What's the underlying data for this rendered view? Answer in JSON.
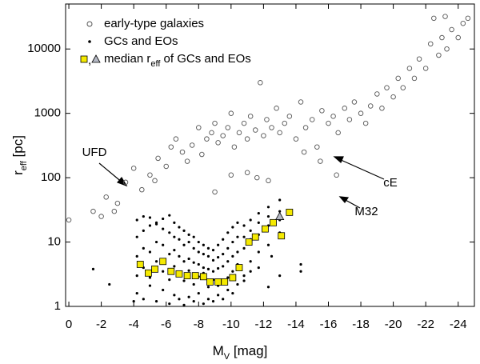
{
  "chart_data": {
    "type": "scatter",
    "xlim": [
      0.2,
      -25
    ],
    "ylim": [
      1,
      50000
    ],
    "log_y": true,
    "xticks": [
      0,
      -2,
      -4,
      -6,
      -8,
      -10,
      -12,
      -14,
      -16,
      -18,
      -20,
      -22,
      -24
    ],
    "yticks": [
      1,
      10,
      100,
      1000,
      10000
    ],
    "xlabel": {
      "main": "M",
      "sub": "V",
      "rest": " [mag]"
    },
    "ylabel": {
      "main": "r",
      "sub": "eff",
      "rest": " [pc]"
    },
    "legend_median": {
      "sep": ",",
      "main": "median r",
      "sub": "eff",
      "rest": " of GCs and EOs"
    },
    "annotations": [
      {
        "text": "UFD"
      },
      {
        "text": "cE"
      },
      {
        "text": "M32"
      }
    ],
    "series": [
      {
        "name": "early-type galaxies",
        "color": "#555555",
        "marker": "open-circle",
        "x": [
          0,
          -1.5,
          -2,
          -2.3,
          -2.8,
          -3,
          -3.5,
          -4,
          -4.5,
          -5,
          -5.3,
          -5.5,
          -6,
          -6.3,
          -6.6,
          -7,
          -7.3,
          -7.6,
          -8,
          -8.2,
          -8.5,
          -8.8,
          -9,
          -9.2,
          -9.5,
          -9.8,
          -10,
          -10.2,
          -10.5,
          -10.8,
          -11,
          -11.2,
          -11.5,
          -11.8,
          -12,
          -12.2,
          -12.5,
          -12.8,
          -13,
          -13.3,
          -13.6,
          -14,
          -14.3,
          -14.6,
          -15,
          -15.3,
          -15.6,
          -16,
          -16.3,
          -16.6,
          -17,
          -17.3,
          -17.6,
          -18,
          -18.3,
          -18.6,
          -19,
          -19.3,
          -19.6,
          -20,
          -20.3,
          -20.6,
          -21,
          -21.3,
          -21.6,
          -22,
          -22.3,
          -22.5,
          -22.8,
          -23,
          -23.3,
          -23.6,
          -24,
          -24.3,
          -24.6,
          -23.2,
          -11,
          -11.6,
          -12.3,
          -14.5,
          -15.5,
          -16.5,
          -10,
          -9
        ],
        "values": [
          22,
          30,
          25,
          50,
          30,
          40,
          85,
          140,
          65,
          110,
          90,
          200,
          150,
          300,
          400,
          250,
          180,
          320,
          600,
          230,
          400,
          500,
          700,
          350,
          450,
          600,
          1000,
          300,
          500,
          700,
          400,
          900,
          550,
          3000,
          450,
          800,
          600,
          1200,
          500,
          700,
          900,
          400,
          1500,
          600,
          800,
          300,
          1100,
          700,
          900,
          500,
          1200,
          800,
          1500,
          1000,
          700,
          1300,
          2000,
          1200,
          2500,
          1800,
          3500,
          2500,
          5000,
          3500,
          7000,
          5000,
          12000,
          30000,
          8000,
          15000,
          10000,
          20000,
          15000,
          25000,
          30000,
          32000,
          120,
          100,
          90,
          250,
          180,
          110,
          110,
          60
        ]
      },
      {
        "name": "GCs and EOs",
        "color": "#000000",
        "marker": "dot",
        "x": [
          -4.2,
          -4.6,
          -5,
          -5.4,
          -5.8,
          -6.2,
          -6.5,
          -6.8,
          -7.1,
          -7.4,
          -7.7,
          -8,
          -8.3,
          -8.6,
          -8.9,
          -9.2,
          -9.5,
          -9.8,
          -10.1,
          -10.4,
          -10.8,
          -11.2,
          -11.7,
          -12.3,
          -13,
          -4.2,
          -4.6,
          -5,
          -5.4,
          -5.8,
          -6.2,
          -6.5,
          -6.8,
          -7.1,
          -7.4,
          -7.7,
          -8,
          -8.3,
          -8.6,
          -8.9,
          -9.2,
          -9.5,
          -9.8,
          -10.1,
          -10.4,
          -10.8,
          -11.2,
          -11.7,
          -12.3,
          -13,
          -4.2,
          -4.6,
          -5,
          -5.4,
          -5.8,
          -6.2,
          -6.5,
          -6.8,
          -7.1,
          -7.4,
          -7.7,
          -8,
          -8.3,
          -8.6,
          -8.9,
          -9.2,
          -9.5,
          -9.8,
          -10.1,
          -10.4,
          -10.8,
          -11.2,
          -11.7,
          -12.3,
          -13,
          -4.2,
          -4.6,
          -5,
          -5.4,
          -5.8,
          -6.2,
          -6.5,
          -6.8,
          -7.1,
          -7.4,
          -7.7,
          -8,
          -8.3,
          -8.6,
          -8.9,
          -9.2,
          -9.5,
          -9.8,
          -10.1,
          -10.4,
          -10.8,
          -11.2,
          -11.7,
          -12.3,
          -13,
          -4.2,
          -4.6,
          -5,
          -5.4,
          -5.8,
          -6.2,
          -6.5,
          -6.8,
          -7.1,
          -7.4,
          -7.7,
          -8,
          -8.3,
          -8.6,
          -8.9,
          -9.2,
          -9.5,
          -9.8,
          -10.1,
          -10.4,
          -10.8,
          -11.2,
          -11.7,
          -12.3,
          -13,
          -1.5,
          -2.5,
          -4,
          -14.3,
          -14.3,
          -12.5
        ],
        "values": [
          1.6,
          1.3,
          2.1,
          1.2,
          1.8,
          1.1,
          1.5,
          1.3,
          1.05,
          1.4,
          1.2,
          1.6,
          1.1,
          1.3,
          1.2,
          1.5,
          1.3,
          1.8,
          1.6,
          2.2,
          3,
          5,
          7,
          9,
          14,
          3,
          4,
          2.8,
          5,
          3.5,
          2.6,
          4.2,
          3.1,
          2.5,
          3.6,
          2.2,
          2.9,
          3.3,
          2,
          2.6,
          2.1,
          2.4,
          2.8,
          3.5,
          4.5,
          8,
          11,
          13,
          18,
          22,
          6,
          8,
          7,
          10,
          9,
          6.5,
          7.5,
          6,
          5,
          5.5,
          4.8,
          4.5,
          4,
          3.8,
          3.5,
          3.9,
          4.2,
          5,
          6,
          7,
          12,
          15,
          20,
          25,
          30,
          12,
          15,
          18,
          20,
          16,
          14,
          12,
          11,
          9,
          10,
          8,
          7,
          6.5,
          6,
          5.2,
          5.8,
          6.5,
          8,
          10,
          12,
          18,
          22,
          28,
          35,
          45,
          22,
          25,
          24,
          19,
          23,
          26,
          20,
          17,
          15,
          13,
          12,
          10,
          9,
          8,
          7.5,
          9,
          11,
          14,
          17,
          20,
          2.5,
          3.5,
          4,
          2,
          3,
          3.8,
          2.2,
          1.2,
          3.5,
          4.5,
          6
        ]
      },
      {
        "color": "#f5ea00",
        "marker": "square",
        "x": [
          -4.4,
          -4.9,
          -5.3,
          -5.8,
          -6.3,
          -6.8,
          -7.3,
          -7.8,
          -8.3,
          -8.7,
          -9.2,
          -9.6,
          -10.1,
          -10.5,
          -11.1,
          -11.5,
          -12.1,
          -12.6,
          -13.1,
          -13.6
        ],
        "values": [
          4.5,
          3.3,
          3.8,
          5,
          3.5,
          3.2,
          3.0,
          3.0,
          2.9,
          2.4,
          2.4,
          2.4,
          2.8,
          4.0,
          10,
          12,
          16,
          20,
          12.5,
          29
        ]
      },
      {
        "color": "#b4b8c4",
        "marker": "triangle",
        "x": [
          -13.0
        ],
        "values": [
          25
        ]
      }
    ]
  }
}
